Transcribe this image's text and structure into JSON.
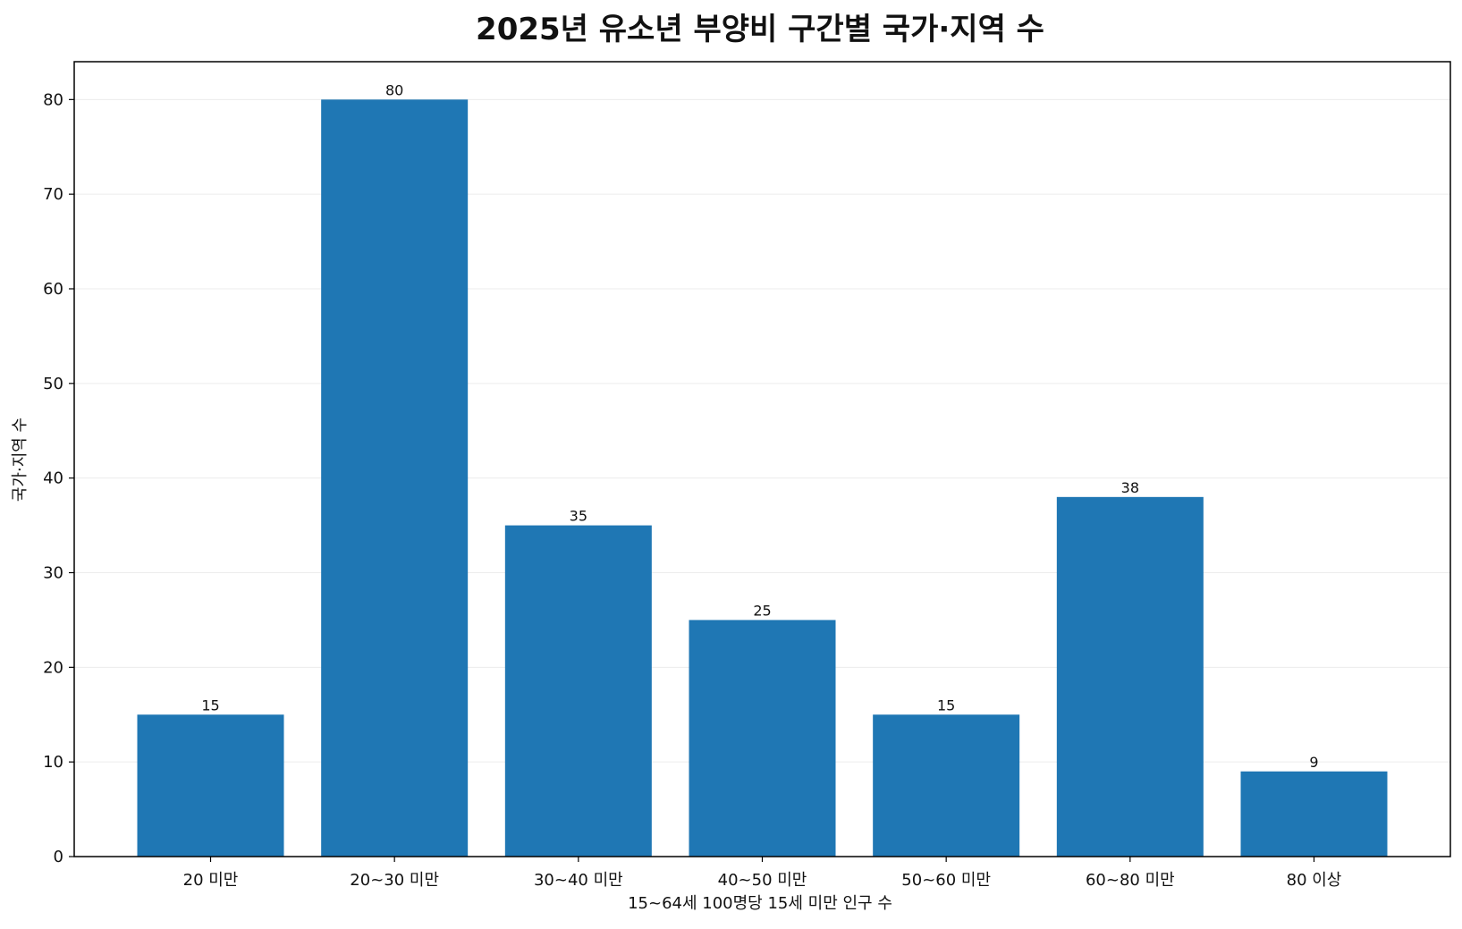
{
  "chart_data": {
    "type": "bar",
    "title": "2025년 유소년 부양비 구간별 국가·지역 수",
    "xlabel": "15~64세 100명당 15세 미만 인구 수",
    "ylabel": "국가·지역 수",
    "categories": [
      "20 미만",
      "20~30 미만",
      "30~40 미만",
      "40~50 미만",
      "50~60 미만",
      "60~80 미만",
      "80 이상"
    ],
    "values": [
      15,
      80,
      35,
      25,
      15,
      38,
      9
    ],
    "ylim": [
      0,
      84
    ],
    "yticks": [
      0,
      10,
      20,
      30,
      40,
      50,
      60,
      70,
      80
    ],
    "grid": "horizontal",
    "bar_color": "#1f77b4",
    "data_labels": true
  }
}
